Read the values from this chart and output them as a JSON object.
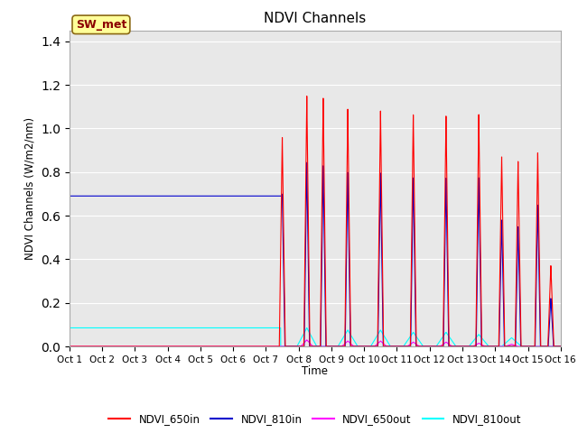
{
  "title": "NDVI Channels",
  "ylabel": "NDVI Channels (W/m2/nm)",
  "xlabel": "Time",
  "xlim": [
    0,
    15
  ],
  "ylim": [
    0,
    1.45
  ],
  "yticks": [
    0.0,
    0.2,
    0.4,
    0.6,
    0.8,
    1.0,
    1.2,
    1.4
  ],
  "xtick_labels": [
    "Oct 1",
    "Oct 2",
    "Oct 3",
    "Oct 4",
    "Oct 5",
    "Oct 6",
    "Oct 7",
    "Oct 8",
    "Oct 9",
    "Oct 10",
    "Oct 11",
    "Oct 12",
    "Oct 13",
    "Oct 14",
    "Oct 15",
    "Oct 16"
  ],
  "bg_color": "#e8e8e8",
  "annotation_text": "SW_met",
  "annotation_color": "#8B0000",
  "annotation_bg": "#FFFF99",
  "colors": {
    "NDVI_650in": "#FF0000",
    "NDVI_810in": "#0000CC",
    "NDVI_650out": "#FF00FF",
    "NDVI_810out": "#00FFFF"
  },
  "spike_650in_centers": [
    6.5,
    7.25,
    7.75,
    8.5,
    9.5,
    10.5,
    11.5,
    12.5,
    13.2,
    13.7,
    14.3,
    14.7
  ],
  "spike_650in_heights": [
    0.96,
    1.15,
    1.14,
    1.09,
    1.08,
    1.065,
    1.06,
    1.065,
    0.87,
    0.85,
    0.89,
    0.37
  ],
  "spike_810in_centers": [
    6.5,
    7.25,
    7.75,
    8.5,
    9.5,
    10.5,
    11.5,
    12.5,
    13.2,
    13.7,
    14.3,
    14.7
  ],
  "spike_810in_heights": [
    0.7,
    0.845,
    0.83,
    0.8,
    0.795,
    0.775,
    0.775,
    0.775,
    0.58,
    0.55,
    0.65,
    0.22
  ],
  "spike_650out_centers": [
    7.25,
    8.5,
    9.5,
    10.5,
    11.5,
    12.5,
    13.5
  ],
  "spike_650out_heights": [
    0.03,
    0.025,
    0.025,
    0.02,
    0.02,
    0.015,
    0.01
  ],
  "spike_810out_centers": [
    7.25,
    8.5,
    9.5,
    10.5,
    11.5,
    12.5,
    13.5
  ],
  "spike_810out_heights": [
    0.085,
    0.075,
    0.075,
    0.065,
    0.065,
    0.055,
    0.04
  ],
  "ndvi_810in_flat": 0.69,
  "ndvi_810out_flat": 0.085
}
